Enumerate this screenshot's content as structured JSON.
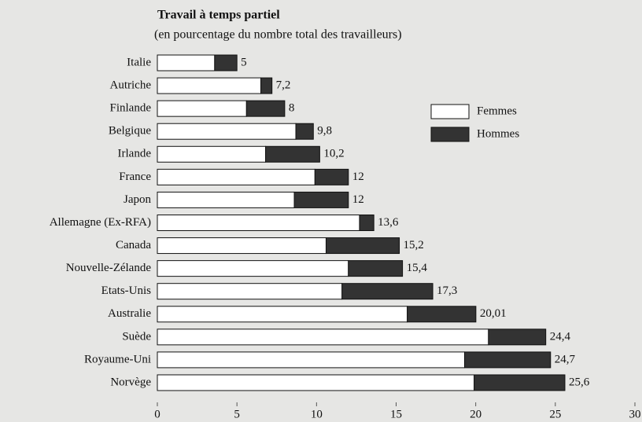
{
  "chart_data": {
    "type": "stacked-bar-horizontal",
    "title": "Travail à temps partiel",
    "subtitle": "(en pourcentage du nombre total des travailleurs)",
    "categories": [
      "Italie",
      "Autriche",
      "Finlande",
      "Belgique",
      "Irlande",
      "France",
      "Japon",
      "Allemagne (Ex-RFA)",
      "Canada",
      "Nouvelle-Zélande",
      "Etats-Unis",
      "Australie",
      "Suède",
      "Royaume-Uni",
      "Norvège"
    ],
    "series": [
      {
        "name": "Femmes",
        "color": "#ffffff",
        "values": [
          3.6,
          6.5,
          5.6,
          8.7,
          6.8,
          9.9,
          8.6,
          12.7,
          10.6,
          12.0,
          11.6,
          15.7,
          20.8,
          19.3,
          19.9
        ]
      },
      {
        "name": "Hommes",
        "color": "#333333",
        "values": [
          1.4,
          0.7,
          2.4,
          1.1,
          3.4,
          2.1,
          3.4,
          0.9,
          4.6,
          3.4,
          5.7,
          4.31,
          3.6,
          5.4,
          5.7
        ]
      }
    ],
    "totals": [
      5,
      7.2,
      8,
      9.8,
      10.2,
      12,
      12,
      13.6,
      15.2,
      15.4,
      17.3,
      20.01,
      24.4,
      24.7,
      25.6
    ],
    "total_labels": [
      "5",
      "7,2",
      "8",
      "9,8",
      "10,2",
      "12",
      "12",
      "13,6",
      "15,2",
      "15,4",
      "17,3",
      "20,01",
      "24,4",
      "24,7",
      "25,6"
    ],
    "xlim": [
      0,
      30
    ],
    "xticks": [
      0,
      5,
      10,
      15,
      20,
      25,
      30
    ]
  }
}
